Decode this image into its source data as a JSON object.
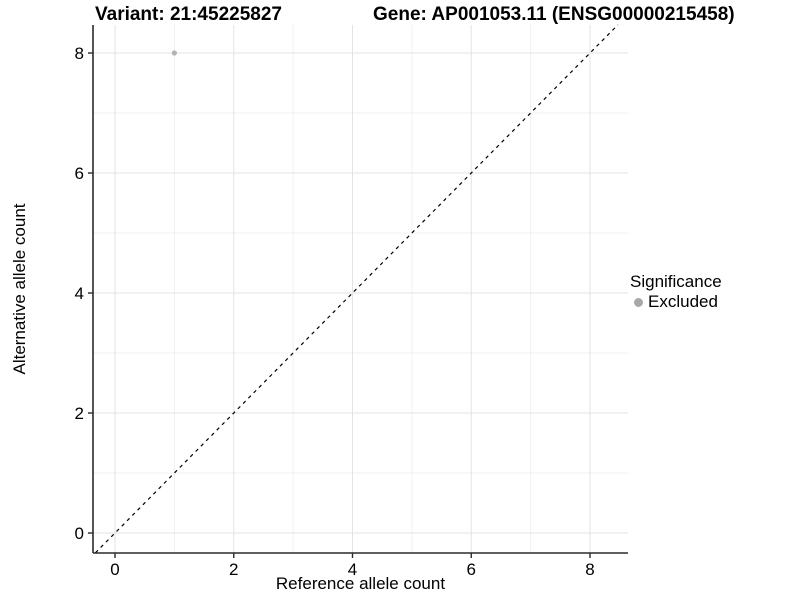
{
  "figure": {
    "title_left": "Variant: 21:45225827",
    "title_right": "Gene: AP001053.11 (ENSG00000215458)"
  },
  "chart_data": {
    "type": "scatter",
    "title_left": "Variant: 21:45225827",
    "title_right": "Gene: AP001053.11 (ENSG00000215458)",
    "xlabel": "Reference allele count",
    "ylabel": "Alternative allele count",
    "x_ticks": [
      0,
      2,
      4,
      6,
      8
    ],
    "y_ticks": [
      0,
      2,
      4,
      6,
      8
    ],
    "x_minor_gridlines": [
      1,
      3,
      5,
      7
    ],
    "y_minor_gridlines": [
      1,
      3,
      5,
      7
    ],
    "xlim": [
      -0.37,
      8.64
    ],
    "ylim": [
      -0.33,
      8.47
    ],
    "grid": "on",
    "points": [
      {
        "x": 1,
        "y": 8,
        "series": "Excluded"
      }
    ],
    "reference_line": {
      "type": "identity",
      "slope": 1,
      "intercept": 0,
      "style": "dashed",
      "color": "#000000"
    },
    "legend": {
      "title": "Significance",
      "position": "right",
      "entries": [
        {
          "label": "Excluded",
          "color": "#a8a8a8"
        }
      ]
    },
    "colors": {
      "background": "#ffffff",
      "text": "#000000",
      "axis": "#2a2a2a",
      "grid_major": "#e3e3e3",
      "grid_minor": "#f0f0f0",
      "point": "#b3b3b3"
    }
  }
}
